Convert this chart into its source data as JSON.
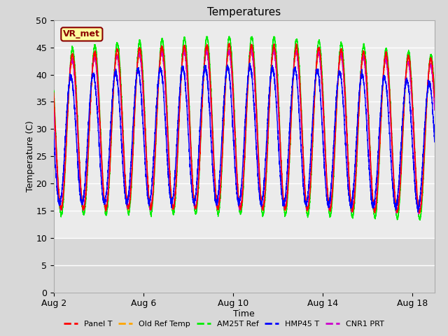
{
  "title": "Temperatures",
  "xlabel": "Time",
  "ylabel": "Temperature (C)",
  "ylim": [
    0,
    50
  ],
  "yticks": [
    0,
    5,
    10,
    15,
    20,
    25,
    30,
    35,
    40,
    45,
    50
  ],
  "xtick_labels": [
    "Aug 2",
    "Aug 6",
    "Aug 10",
    "Aug 14",
    "Aug 18"
  ],
  "xtick_positions": [
    0,
    4,
    8,
    12,
    16
  ],
  "xlim": [
    0,
    17
  ],
  "annotation_text": "VR_met",
  "annotation_bg": "#FFFFA0",
  "annotation_border": "#8B0000",
  "colors": {
    "Panel T": "#FF0000",
    "Old Ref Temp": "#FFA500",
    "AM25T Ref": "#00EE00",
    "HMP45 T": "#0000FF",
    "CNR1 PRT": "#CC00CC"
  },
  "legend_labels": [
    "Panel T",
    "Old Ref Temp",
    "AM25T Ref",
    "HMP45 T",
    "CNR1 PRT"
  ],
  "background_color": "#D8D8D8",
  "plot_bg_upper": "#EBEBEB",
  "plot_bg_lower": "#D8D8D8",
  "grid_color": "#FFFFFF",
  "title_fontsize": 11,
  "axis_label_fontsize": 9,
  "tick_fontsize": 9,
  "n_points": 5000,
  "days": 17
}
